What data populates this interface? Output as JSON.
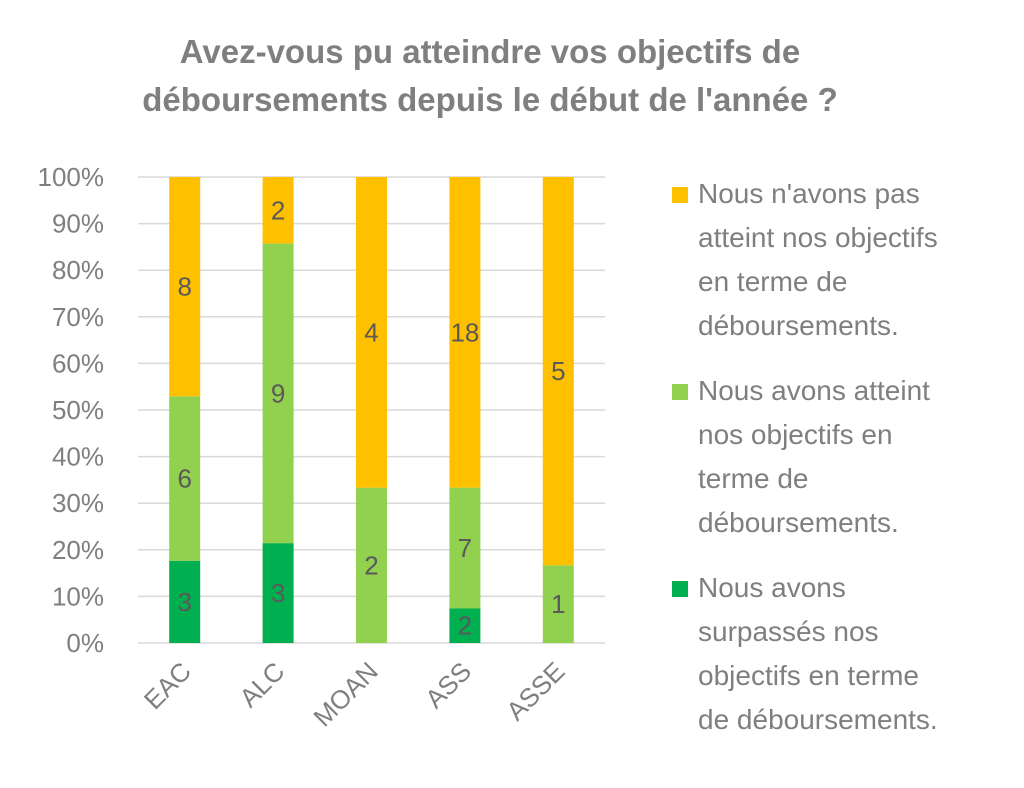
{
  "chart_data": {
    "type": "bar",
    "stacked": true,
    "percent": true,
    "title_lines": [
      "Avez-vous pu atteindre vos objectifs de",
      "déboursements depuis le début de l'année ?"
    ],
    "categories": [
      "EAC",
      "ALC",
      "MOAN",
      "ASS",
      "ASSE"
    ],
    "y_ticks": [
      "0%",
      "10%",
      "20%",
      "30%",
      "40%",
      "50%",
      "60%",
      "70%",
      "80%",
      "90%",
      "100%"
    ],
    "ylim": [
      0,
      100
    ],
    "grid": true,
    "legend_position": "right",
    "series": [
      {
        "name": "Nous avons surpassés nos objectifs en terme de déboursements.",
        "color": "#00b050",
        "values": [
          3,
          3,
          0,
          2,
          0
        ]
      },
      {
        "name": "Nous avons atteint nos objectifs en terme de déboursements.",
        "color": "#92d050",
        "values": [
          6,
          9,
          2,
          7,
          1
        ]
      },
      {
        "name": "Nous n'avons pas atteint nos objectifs en terme de déboursements.",
        "color": "#ffc000",
        "values": [
          8,
          2,
          4,
          18,
          5
        ]
      }
    ],
    "legend_order": [
      2,
      1,
      0
    ],
    "legend_lines": [
      [
        "Nous n'avons pas",
        "atteint nos objectifs",
        "en terme de",
        "déboursements."
      ],
      [
        "Nous avons atteint",
        "nos objectifs en",
        "terme de",
        "déboursements."
      ],
      [
        "Nous avons",
        "surpassés nos",
        "objectifs en terme",
        "de déboursements."
      ]
    ]
  }
}
